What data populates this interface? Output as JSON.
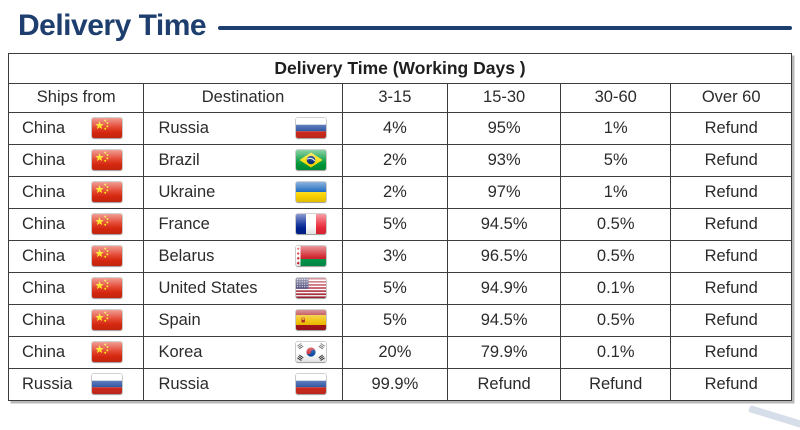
{
  "page": {
    "title": "Delivery Time"
  },
  "colors": {
    "accent": "#1e3e6e",
    "table_border": "#3c3c3c",
    "text": "#2b2b2b"
  },
  "icons": {
    "flags": [
      "china-flag",
      "russia-flag",
      "brazil-flag",
      "ukraine-flag",
      "france-flag",
      "belarus-flag",
      "united-states-flag",
      "spain-flag",
      "korea-flag"
    ]
  },
  "table": {
    "caption": "Delivery Time (Working Days )",
    "columns": [
      "Ships from",
      "Destination",
      "3-15",
      "15-30",
      "30-60",
      "Over 60"
    ],
    "rows": [
      {
        "ships_from": {
          "label": "China",
          "flag": "cn"
        },
        "destination": {
          "label": "Russia",
          "flag": "ru"
        },
        "values": [
          "4%",
          "95%",
          "1%",
          "Refund"
        ]
      },
      {
        "ships_from": {
          "label": "China",
          "flag": "cn"
        },
        "destination": {
          "label": "Brazil",
          "flag": "br"
        },
        "values": [
          "2%",
          "93%",
          "5%",
          "Refund"
        ]
      },
      {
        "ships_from": {
          "label": "China",
          "flag": "cn"
        },
        "destination": {
          "label": "Ukraine",
          "flag": "ua"
        },
        "values": [
          "2%",
          "97%",
          "1%",
          "Refund"
        ]
      },
      {
        "ships_from": {
          "label": "China",
          "flag": "cn"
        },
        "destination": {
          "label": "France",
          "flag": "fr"
        },
        "values": [
          "5%",
          "94.5%",
          "0.5%",
          "Refund"
        ]
      },
      {
        "ships_from": {
          "label": "China",
          "flag": "cn"
        },
        "destination": {
          "label": "Belarus",
          "flag": "by"
        },
        "values": [
          "3%",
          "96.5%",
          "0.5%",
          "Refund"
        ]
      },
      {
        "ships_from": {
          "label": "China",
          "flag": "cn"
        },
        "destination": {
          "label": "United States",
          "flag": "us"
        },
        "values": [
          "5%",
          "94.9%",
          "0.1%",
          "Refund"
        ]
      },
      {
        "ships_from": {
          "label": "China",
          "flag": "cn"
        },
        "destination": {
          "label": "Spain",
          "flag": "es"
        },
        "values": [
          "5%",
          "94.5%",
          "0.5%",
          "Refund"
        ]
      },
      {
        "ships_from": {
          "label": "China",
          "flag": "cn"
        },
        "destination": {
          "label": "Korea",
          "flag": "kr"
        },
        "values": [
          "20%",
          "79.9%",
          "0.1%",
          "Refund"
        ]
      },
      {
        "ships_from": {
          "label": "Russia",
          "flag": "ru"
        },
        "destination": {
          "label": "Russia",
          "flag": "ru"
        },
        "values": [
          "99.9%",
          "Refund",
          "Refund",
          "Refund"
        ]
      }
    ]
  }
}
